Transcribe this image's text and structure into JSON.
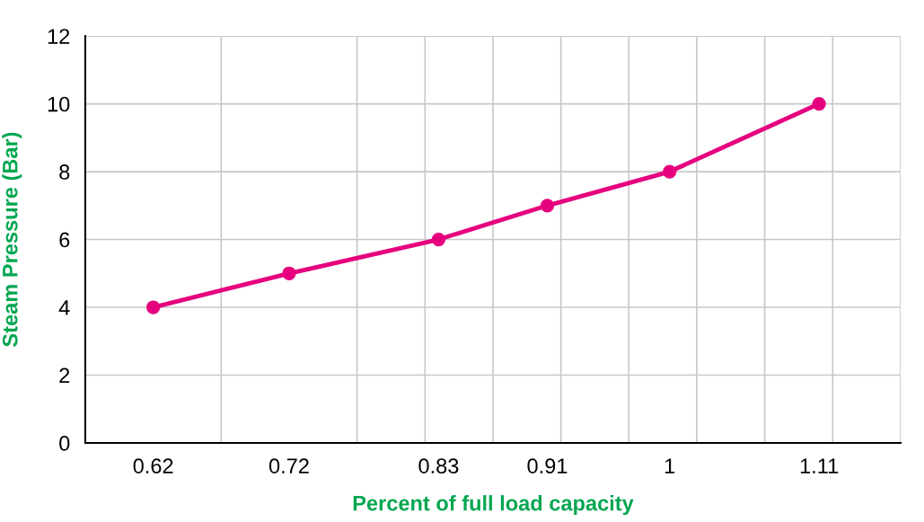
{
  "chart_data": {
    "type": "line",
    "xlabel": "Percent of full load capacity",
    "ylabel": "Steam Pressure (Bar)",
    "x": [
      0.62,
      0.72,
      0.83,
      0.91,
      1,
      1.11
    ],
    "series": [
      {
        "color": "#e6007e",
        "values": [
          4,
          5,
          6,
          7,
          8,
          10
        ]
      }
    ],
    "xlim": [
      0.57,
      1.17
    ],
    "xticks": [
      {
        "value": 0.57,
        "label": null
      },
      0.62,
      {
        "value": 0.67,
        "label": null
      },
      0.72,
      {
        "value": 0.77,
        "label": null
      },
      {
        "value": 0.82,
        "label": null
      },
      0.83,
      {
        "value": 0.87,
        "label": null
      },
      0.91,
      {
        "value": 0.92,
        "label": null
      },
      {
        "value": 0.97,
        "label": null
      },
      1,
      {
        "value": 1.02,
        "label": null
      },
      {
        "value": 1.07,
        "label": null
      },
      1.11,
      {
        "value": 1.12,
        "label": null
      },
      {
        "value": 1.17,
        "label": null
      }
    ],
    "ylim": [
      0,
      12
    ],
    "yticks": [
      0,
      2,
      4,
      6,
      8,
      10,
      12
    ],
    "grid": true,
    "marker": "circle",
    "line_style": "solid"
  }
}
